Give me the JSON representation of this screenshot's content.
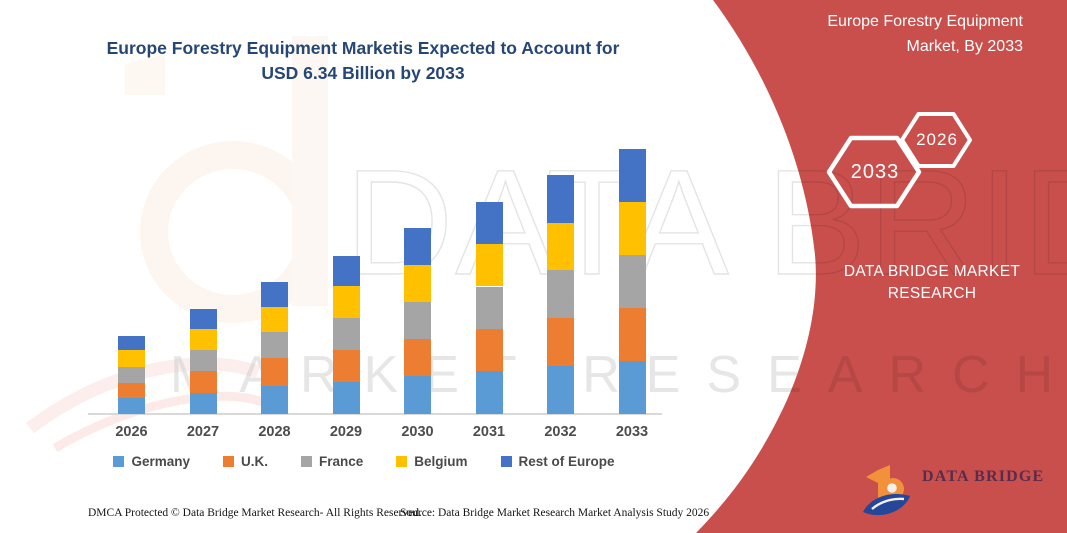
{
  "header": {
    "title_line1": "Europe Forestry Equipment Marketis Expected to Account for",
    "title_line2": "USD 6.34 Billion by 2033"
  },
  "banner": {
    "color": "#C94F4C",
    "title_line1": "Europe Forestry Equipment",
    "title_line2": "Market, By 2033",
    "hexagons": {
      "large": "2033",
      "small": "2026"
    },
    "brand_line1": "DATA BRIDGE MARKET",
    "brand_line2": "RESEARCH"
  },
  "logo": {
    "name": "DATA BRIDGE",
    "subtitle": "MARKET RESEARCH"
  },
  "watermark": {
    "row1": "DATA BRIDGE",
    "row2": "MARKET RESEARCH"
  },
  "footer": {
    "dmca": "DMCA Protected © Data Bridge Market Research-  All Rights Reserved.",
    "source": "Source: Data Bridge Market Research  Market Analysis Study 2026"
  },
  "chart_data": {
    "type": "bar",
    "stacked": true,
    "title": "Europe Forestry Equipment Marketis Expected to Account for USD 6.34 Billion by 2033",
    "unit": "USD Billion",
    "categories": [
      "2026",
      "2027",
      "2028",
      "2029",
      "2030",
      "2031",
      "2032",
      "2033"
    ],
    "series": [
      {
        "name": "Germany",
        "color": "#5B9BD5",
        "values": [
          0.38,
          0.5,
          0.68,
          0.76,
          0.9,
          1.02,
          1.15,
          1.27
        ]
      },
      {
        "name": "U.K.",
        "color": "#ED7D31",
        "values": [
          0.37,
          0.53,
          0.65,
          0.78,
          0.89,
          1.02,
          1.14,
          1.27
        ]
      },
      {
        "name": "France",
        "color": "#A5A5A5",
        "values": [
          0.38,
          0.5,
          0.63,
          0.76,
          0.9,
          1.01,
          1.15,
          1.27
        ]
      },
      {
        "name": "Belgium",
        "color": "#FFC000",
        "values": [
          0.39,
          0.51,
          0.59,
          0.77,
          0.88,
          1.01,
          1.14,
          1.27
        ]
      },
      {
        "name": "Rest of Europe",
        "color": "#4472C4",
        "values": [
          0.35,
          0.47,
          0.61,
          0.72,
          0.89,
          1.01,
          1.14,
          1.26
        ]
      }
    ],
    "totals": [
      1.87,
      2.51,
      3.16,
      3.79,
      4.46,
      5.07,
      5.72,
      6.34
    ],
    "ylim": [
      0,
      6.9
    ],
    "gridlines": false,
    "y_axis_visible": false,
    "legend_position": "bottom"
  }
}
